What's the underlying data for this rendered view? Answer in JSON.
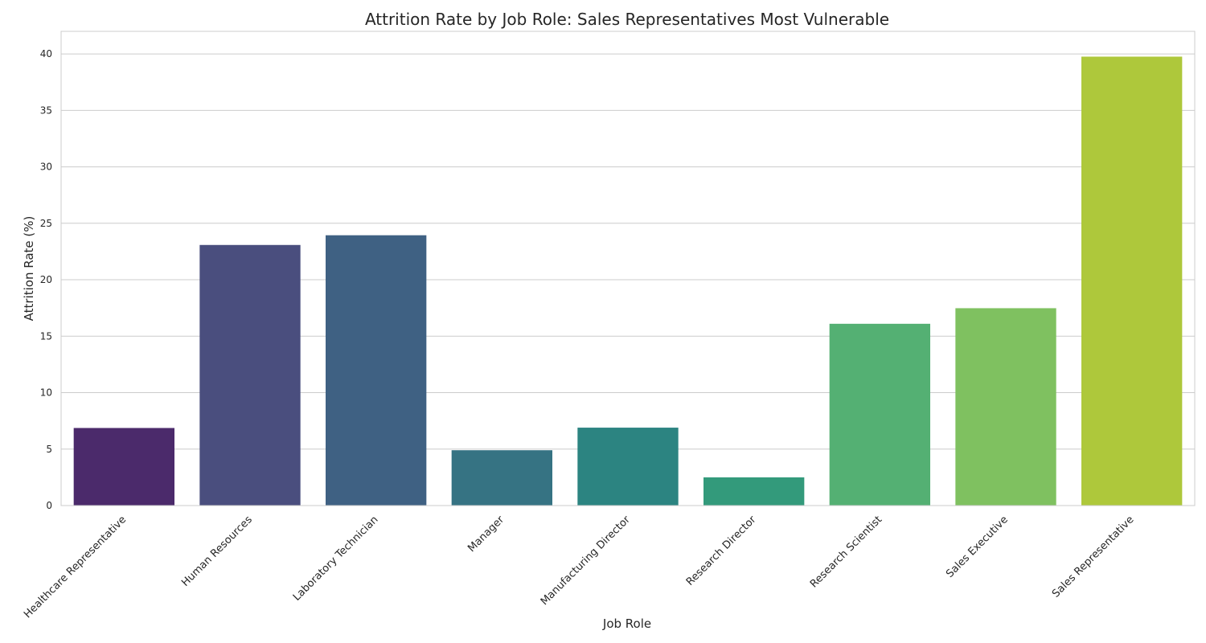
{
  "chart_data": {
    "type": "bar",
    "title": "Attrition Rate by Job Role: Sales Representatives Most Vulnerable",
    "xlabel": "Job Role",
    "ylabel": "Attrition Rate (%)",
    "categories": [
      "Healthcare Representative",
      "Human Resources",
      "Laboratory Technician",
      "Manager",
      "Manufacturing Director",
      "Research Director",
      "Research Scientist",
      "Sales Executive",
      "Sales Representative"
    ],
    "values": [
      6.87,
      23.08,
      23.94,
      4.9,
      6.9,
      2.5,
      16.1,
      17.48,
      39.76
    ],
    "colors": [
      "#4b2a6b",
      "#4a4e7e",
      "#3f6183",
      "#367383",
      "#2c8481",
      "#339a7b",
      "#54b073",
      "#7fc160",
      "#aec83b"
    ],
    "ylim": [
      0,
      42
    ],
    "yticks": [
      0,
      5,
      10,
      15,
      20,
      25,
      30,
      35,
      40
    ],
    "grid": "horizontal"
  }
}
